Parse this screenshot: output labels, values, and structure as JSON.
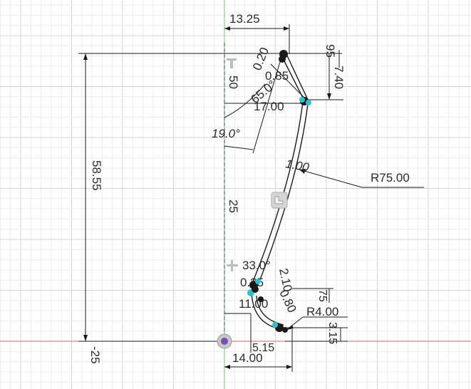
{
  "viewport": {
    "background": "#ffffff",
    "axis_x_color": "#e06060",
    "axis_y_color": "#5fcf70",
    "construction_color": "#1a1a1a",
    "point_color": "#27c6cf",
    "origin_color": "#7a4fb5"
  },
  "dimensions": {
    "d_13_25": "13.25",
    "d_58_55": "58.55",
    "d_95": "95",
    "d_7_40": "7.40",
    "d_0_20": "0.20",
    "d_0_85": "0.85",
    "d_65_0": "65.0°",
    "d_17_00": "17.00",
    "d_19_0": "19.0°",
    "d_1_00_top": "1.00",
    "d_R75": "R75.00",
    "d_33_0": "33.0°",
    "d_2_10": "2.10",
    "d_0_80": "0.80",
    "d_75": "75",
    "d_R4": "R4.00",
    "d_3_15": "3.15",
    "d_5_15": "5.15",
    "d_14_00": "14.00",
    "d_11_00": "11.00",
    "d_0_25": "0.25",
    "d_0_frag": "0",
    "d_1_frag": "1",
    "d_4_frag": "4.00",
    "d_tiny_frag": "8"
  },
  "axis_labels": {
    "y_upper": "50",
    "y_mid": "25",
    "y_lower": "-25"
  },
  "constraint_icons": [
    "perpendicular-icon",
    "tangent-icon",
    "lock-icon"
  ]
}
